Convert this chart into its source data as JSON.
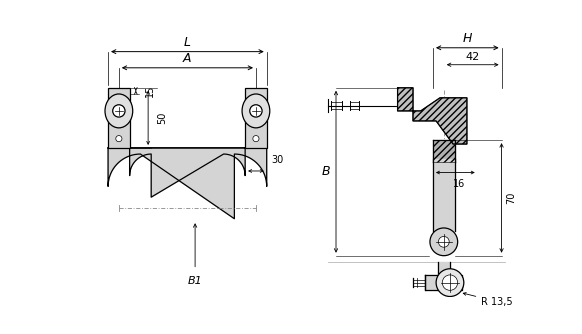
{
  "bg_color": "#ffffff",
  "line_color": "#000000",
  "gray_fill": "#d4d4d4",
  "fig_width": 5.82,
  "fig_height": 3.34,
  "annotations": {
    "L": "L",
    "A": "A",
    "dim_15": "15",
    "dim_50": "50",
    "dim_30": "30",
    "dim_B1": "B1",
    "dim_H": "H",
    "dim_42": "42",
    "dim_16": "16",
    "dim_70": "70",
    "dim_B": "B",
    "dim_R": "R 13,5"
  }
}
